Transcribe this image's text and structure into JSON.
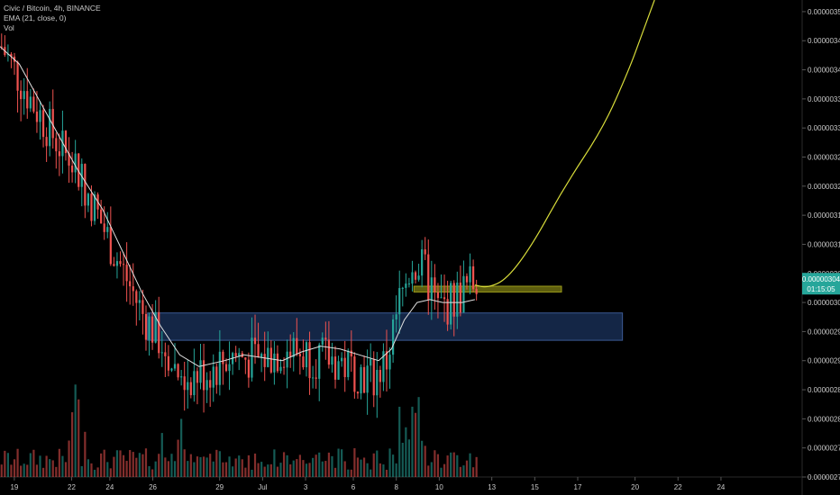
{
  "header": {
    "symbol_line": "Civic / Bitcoin, 4h, BINANCE",
    "ema_line": "EMA (21, close, 0)",
    "vol_line": "Vol"
  },
  "price_badge": {
    "price": "0.00000304",
    "countdown": "01:15:05"
  },
  "colors": {
    "background": "#000000",
    "up": "#26a69a",
    "down": "#ef5350",
    "ema": "#e0e0e0",
    "projection": "#d8dc3a",
    "blue_zone": "#1f3a6b",
    "yellow_zone": "#6d6d10",
    "badge": "#26a69a"
  },
  "chart_data": {
    "type": "candlestick",
    "title": "",
    "ylabel": "",
    "xlabel": "",
    "ylim": [
      2.7e-06,
      3.52e-06
    ],
    "y_ticks": [
      "0.00000270",
      "0.00000275",
      "0.00000280",
      "0.00000285",
      "0.00000290",
      "0.00000295",
      "0.00000300",
      "0.00000305",
      "0.00000310",
      "0.00000315",
      "0.00000320",
      "0.00000325",
      "0.00000330",
      "0.00000335",
      "0.00000340",
      "0.00000345",
      "0.00000350"
    ],
    "x_ticks": [
      "19",
      "22",
      "24",
      "26",
      "29",
      "Jul",
      "3",
      "6",
      "8",
      "10",
      "13",
      "15",
      "17",
      "20",
      "22",
      "24"
    ],
    "last_price": 3.04e-06,
    "ema_path": [
      [
        0,
        3.44e-06
      ],
      [
        6,
        3.41e-06
      ],
      [
        12,
        3.35e-06
      ],
      [
        18,
        3.29e-06
      ],
      [
        24,
        3.23e-06
      ],
      [
        32,
        3.16e-06
      ],
      [
        38,
        3.09e-06
      ],
      [
        44,
        3.02e-06
      ],
      [
        50,
        2.96e-06
      ],
      [
        56,
        2.91e-06
      ],
      [
        62,
        2.89e-06
      ],
      [
        70,
        2.9e-06
      ],
      [
        76,
        2.91e-06
      ],
      [
        82,
        2.905e-06
      ],
      [
        88,
        2.9e-06
      ],
      [
        94,
        2.915e-06
      ],
      [
        100,
        2.925e-06
      ],
      [
        106,
        2.92e-06
      ],
      [
        112,
        2.91e-06
      ],
      [
        118,
        2.9e-06
      ],
      [
        122,
        2.92e-06
      ],
      [
        126,
        2.97e-06
      ],
      [
        130,
        3e-06
      ],
      [
        134,
        3.005e-06
      ],
      [
        138,
        3e-06
      ],
      [
        144,
        3e-06
      ],
      [
        148,
        3.005e-06
      ]
    ],
    "projection_path": [
      [
        148,
        3.03e-06
      ],
      [
        152,
        3.025e-06
      ],
      [
        158,
        3.04e-06
      ],
      [
        166,
        3.1e-06
      ],
      [
        176,
        3.2e-06
      ],
      [
        188,
        3.3e-06
      ],
      [
        196,
        3.4e-06
      ],
      [
        200,
        3.46e-06
      ],
      [
        204,
        3.52e-06
      ]
    ],
    "zones": [
      {
        "name": "support-zone",
        "x0": 46,
        "x1": 194,
        "y0": 2.935e-06,
        "y1": 2.982e-06
      },
      {
        "name": "resistance-line-zone",
        "x0": 129,
        "x1": 175,
        "y0": 3.018e-06,
        "y1": 3.028e-06
      }
    ],
    "x_range": [
      0,
      250
    ]
  }
}
